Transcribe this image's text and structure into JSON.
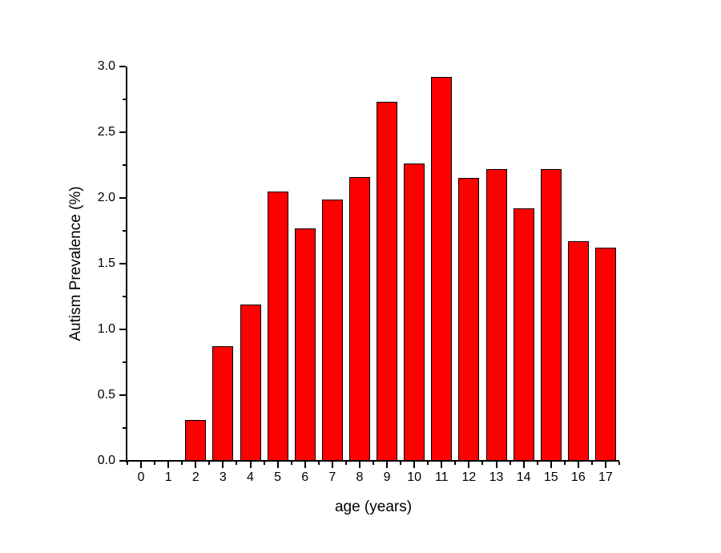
{
  "chart_data": {
    "type": "bar",
    "title": "",
    "xlabel": "age (years)",
    "ylabel": "Autism Prevalence (%)",
    "categories": [
      "0",
      "1",
      "2",
      "3",
      "4",
      "5",
      "6",
      "7",
      "8",
      "9",
      "10",
      "11",
      "12",
      "13",
      "14",
      "15",
      "16",
      "17"
    ],
    "values": [
      0,
      0,
      0.31,
      0.87,
      1.19,
      2.05,
      1.77,
      1.99,
      2.16,
      2.73,
      2.26,
      2.92,
      2.15,
      2.22,
      1.92,
      2.22,
      1.67,
      1.62
    ],
    "ylim": [
      0.0,
      3.0
    ],
    "ytick_values": [
      0.0,
      0.5,
      1.0,
      1.5,
      2.0,
      2.5,
      3.0
    ],
    "ytick_labels": [
      "0.0",
      "0.5",
      "1.0",
      "1.5",
      "2.0",
      "2.5",
      "3.0"
    ],
    "yminor_step": 0.25,
    "xminor_between_categories": true,
    "grid": false,
    "legend": null,
    "colors": {
      "bar_fill": "#FF0000",
      "bar_stroke": "#000000",
      "axis": "#000000",
      "text": "#000000",
      "background": "#FFFFFF"
    }
  }
}
